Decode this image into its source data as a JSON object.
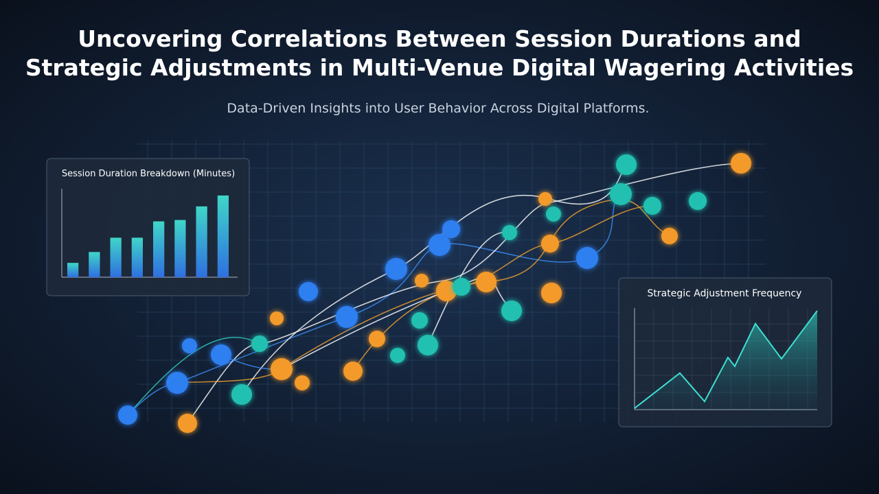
{
  "header": {
    "title_lines": [
      "Uncovering Correlations Between Session Durations and",
      "Strategic Adjustments in Multi-Venue Digital Wagering Activities"
    ],
    "subtitle": "Data-Driven Insights into User Behavior Across Digital Platforms."
  },
  "bar_panel": {
    "type": "bar",
    "title": "Session Duration Breakdown (Minutes)",
    "values": [
      21,
      37,
      58,
      58,
      82,
      84,
      104,
      120
    ],
    "ylim": [
      0,
      130
    ]
  },
  "area_panel": {
    "type": "area",
    "title": "Strategic Adjustment Frequency",
    "x": [
      0,
      66,
      102,
      136,
      146,
      176,
      214,
      266
    ],
    "values": [
      2,
      54,
      12,
      77,
      64,
      127,
      75,
      146
    ],
    "xlim": [
      0,
      266
    ],
    "ylim": [
      0,
      150
    ]
  }
}
